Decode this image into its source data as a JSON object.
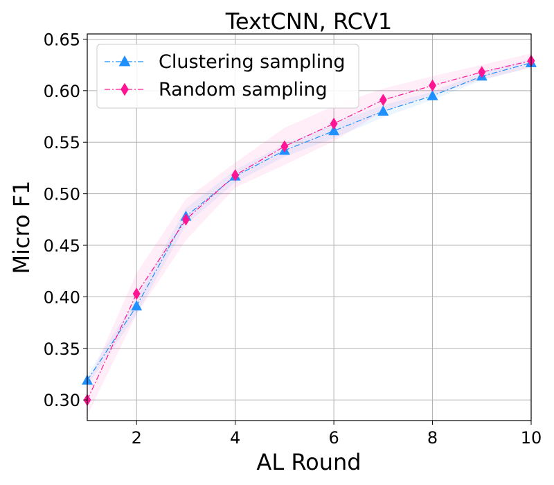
{
  "chart_data": {
    "type": "line",
    "title": "TextCNN, RCV1",
    "xlabel": "AL Round",
    "ylabel": "Micro F1",
    "xlim": [
      1,
      10
    ],
    "ylim": [
      0.28,
      0.655
    ],
    "xticks": [
      2,
      4,
      6,
      8,
      10
    ],
    "yticks": [
      0.3,
      0.35,
      0.4,
      0.45,
      0.5,
      0.55,
      0.6,
      0.65
    ],
    "ytick_labels": [
      "0.30",
      "0.35",
      "0.40",
      "0.45",
      "0.50",
      "0.55",
      "0.60",
      "0.65"
    ],
    "xtick_labels": [
      "2",
      "4",
      "6",
      "8",
      "10"
    ],
    "grid": true,
    "legend_position": "top-left",
    "x": [
      1,
      2,
      3,
      4,
      5,
      6,
      7,
      8,
      9,
      10
    ],
    "series": [
      {
        "name": "Clustering sampling",
        "color": "#1E90FF",
        "marker": "triangle",
        "linestyle": "dashdot",
        "values": [
          0.319,
          0.391,
          0.478,
          0.517,
          0.542,
          0.561,
          0.58,
          0.595,
          0.614,
          0.627
        ],
        "band_lower": [
          0.314,
          0.383,
          0.47,
          0.511,
          0.536,
          0.554,
          0.574,
          0.591,
          0.61,
          0.623
        ],
        "band_upper": [
          0.324,
          0.399,
          0.486,
          0.523,
          0.548,
          0.568,
          0.586,
          0.599,
          0.618,
          0.631
        ]
      },
      {
        "name": "Random sampling",
        "color": "#FF1493",
        "marker": "diamond",
        "linestyle": "dashdot",
        "values": [
          0.3,
          0.403,
          0.475,
          0.518,
          0.546,
          0.568,
          0.591,
          0.605,
          0.618,
          0.629
        ],
        "band_lower": [
          0.285,
          0.383,
          0.455,
          0.506,
          0.528,
          0.551,
          0.58,
          0.596,
          0.611,
          0.622
        ],
        "band_upper": [
          0.315,
          0.423,
          0.495,
          0.53,
          0.564,
          0.585,
          0.602,
          0.614,
          0.625,
          0.636
        ]
      }
    ]
  }
}
